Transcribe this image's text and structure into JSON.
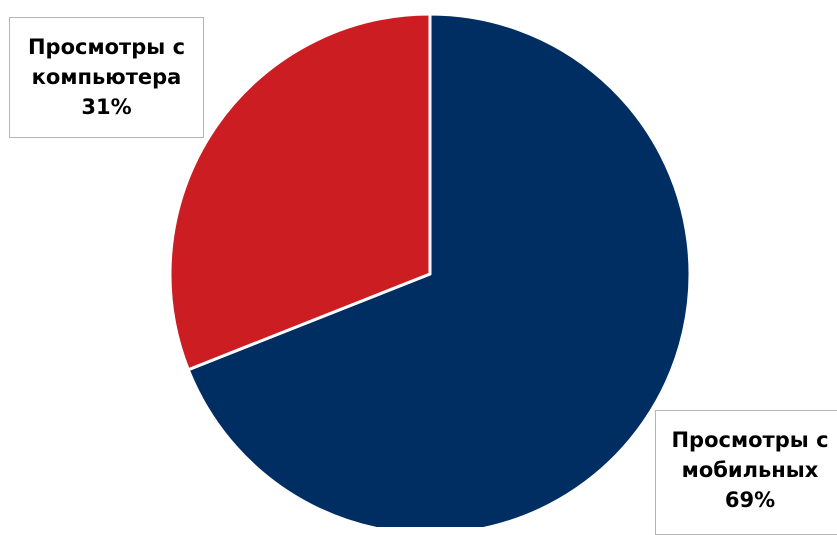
{
  "chart_data": {
    "type": "pie",
    "series": [
      {
        "values": [
          69,
          31
        ]
      }
    ],
    "categories": [
      "Просмотры с мобильных",
      "Просмотры с компьютера"
    ],
    "labels": [
      {
        "line1": "Просмотры с",
        "line2": "мобильных",
        "percent": "69%"
      },
      {
        "line1": "Просмотры с",
        "line2": "компьютера",
        "percent": "31%"
      }
    ],
    "colors": [
      "#002d62",
      "#cc1d22"
    ],
    "slice_border_color": "#ffffff",
    "start_angle_deg": 0,
    "direction": "clockwise",
    "legend": "none"
  }
}
